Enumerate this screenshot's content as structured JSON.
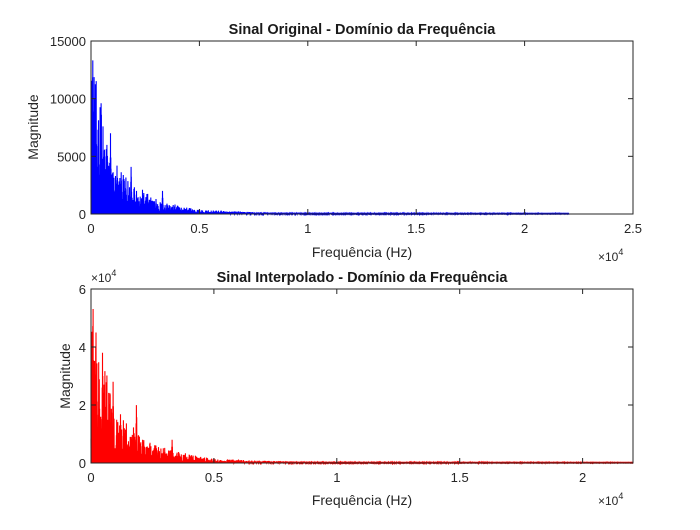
{
  "chart_data": [
    {
      "type": "line",
      "title": "Sinal Original - Domínio da Frequência",
      "xlabel": "Frequência (Hz)",
      "ylabel": "Magnitude",
      "xlim": [
        0,
        25000
      ],
      "ylim": [
        0,
        15000
      ],
      "xticks": [
        0,
        5000,
        10000,
        15000,
        20000,
        25000
      ],
      "xtick_labels": [
        "0",
        "0.5",
        "1",
        "1.5",
        "2",
        "2.5"
      ],
      "x_exponent_label": "×10",
      "x_exponent_power": "4",
      "yticks": [
        0,
        5000,
        10000,
        15000
      ],
      "ytick_labels": [
        "0",
        "5000",
        "10000",
        "15000"
      ],
      "grid": false,
      "legend": "none",
      "x_max_data": 22050,
      "series": [
        {
          "color": "#0000ff",
          "peaks": [
            [
              80,
              14800
            ],
            [
              200,
              12500
            ],
            [
              330,
              8600
            ],
            [
              470,
              10100
            ],
            [
              620,
              6200
            ],
            [
              760,
              5600
            ],
            [
              900,
              7000
            ],
            [
              1050,
              3700
            ],
            [
              1200,
              4200
            ],
            [
              1400,
              3200
            ],
            [
              1600,
              2500
            ],
            [
              1850,
              4300
            ],
            [
              2100,
              2000
            ],
            [
              2600,
              1700
            ],
            [
              3000,
              1300
            ],
            [
              3300,
              2000
            ],
            [
              3500,
              1000
            ],
            [
              4000,
              800
            ],
            [
              4300,
              600
            ],
            [
              5000,
              450
            ],
            [
              6000,
              300
            ],
            [
              7000,
              200
            ],
            [
              8000,
              150
            ]
          ],
          "envelope": [
            [
              0,
              14000
            ],
            [
              1000,
              4200
            ],
            [
              3000,
              1200
            ],
            [
              5000,
              350
            ],
            [
              8000,
              150
            ],
            [
              12000,
              80
            ],
            [
              17000,
              40
            ],
            [
              22050,
              30
            ]
          ]
        }
      ]
    },
    {
      "type": "line",
      "title": "Sinal Interpolado - Domínio da Frequência",
      "xlabel": "Frequência (Hz)",
      "ylabel": "Magnitude",
      "xlim": [
        0,
        22050
      ],
      "ylim": [
        0,
        60000
      ],
      "xticks": [
        0,
        5000,
        10000,
        15000,
        20000
      ],
      "xtick_labels": [
        "0",
        "0.5",
        "1",
        "1.5",
        "2"
      ],
      "x_exponent_label": "×10",
      "x_exponent_power": "4",
      "yticks": [
        0,
        20000,
        40000,
        60000
      ],
      "ytick_labels": [
        "0",
        "2",
        "4",
        "6"
      ],
      "y_exponent_label": "×10",
      "y_exponent_power": "4",
      "grid": false,
      "legend": "none",
      "x_max_data": 22050,
      "series": [
        {
          "color": "#ff0000",
          "peaks": [
            [
              80,
              59000
            ],
            [
              200,
              50000
            ],
            [
              330,
              34000
            ],
            [
              470,
              40000
            ],
            [
              620,
              24000
            ],
            [
              760,
              22500
            ],
            [
              900,
              28000
            ],
            [
              1050,
              14500
            ],
            [
              1200,
              16800
            ],
            [
              1400,
              12800
            ],
            [
              1600,
              10000
            ],
            [
              1850,
              21000
            ],
            [
              2100,
              8000
            ],
            [
              2600,
              6800
            ],
            [
              3000,
              5200
            ],
            [
              3300,
              8000
            ],
            [
              3500,
              4000
            ],
            [
              4000,
              3200
            ],
            [
              4300,
              2400
            ],
            [
              5000,
              1800
            ],
            [
              6000,
              1200
            ],
            [
              7000,
              800
            ],
            [
              8000,
              600
            ]
          ],
          "envelope": [
            [
              0,
              56000
            ],
            [
              1000,
              16800
            ],
            [
              3000,
              4800
            ],
            [
              5000,
              1400
            ],
            [
              8000,
              600
            ],
            [
              12000,
              320
            ],
            [
              17000,
              160
            ],
            [
              22050,
              120
            ]
          ]
        }
      ]
    }
  ]
}
